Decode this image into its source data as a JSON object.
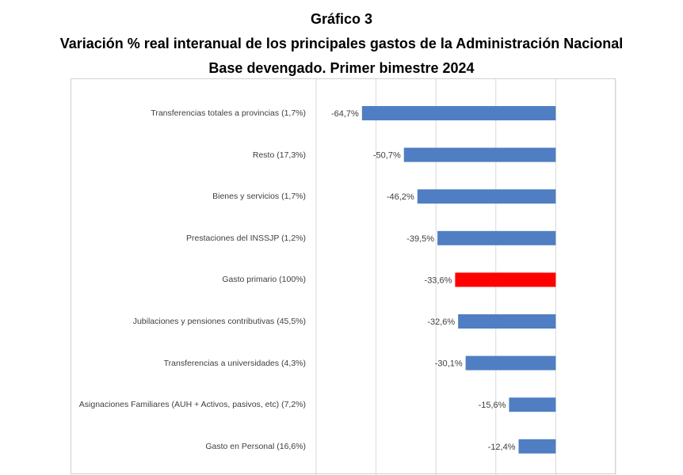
{
  "title_line1": "Gráfico 3",
  "title_line2": "Variación % real interanual de los principales gastos de la Administración Nacional",
  "title_line3": "Base devengado. Primer bimestre 2024",
  "chart_data": {
    "type": "bar",
    "orientation": "horizontal",
    "categories": [
      "Transferencias totales a provincias (1,7%)",
      "Resto (17,3%)",
      "Bienes y servicios (1,7%)",
      "Prestaciones del INSSJP (1,2%)",
      "Gasto primario (100%)",
      "Jubilaciones y pensiones contributivas (45,5%)",
      "Transferencias a universidades (4,3%)",
      "Asignaciones Familiares (AUH + Activos, pasivos, etc) (7,2%)",
      "Gasto en Personal (16,6%)"
    ],
    "values": [
      -64.7,
      -50.7,
      -46.2,
      -39.5,
      -33.6,
      -32.6,
      -30.1,
      -15.6,
      -12.4
    ],
    "data_labels": [
      "-64,7%",
      "-50,7%",
      "-46,2%",
      "-39,5%",
      "-33,6%",
      "-32,6%",
      "-30,1%",
      "-15,6%",
      "-12,4%"
    ],
    "highlight_index": 4,
    "colors": {
      "bar": "#4f7ec3",
      "highlight": "#ff0000",
      "grid": "#d9d9d9",
      "label": "#404040"
    },
    "xlim": [
      -80,
      20
    ],
    "grid": true
  }
}
